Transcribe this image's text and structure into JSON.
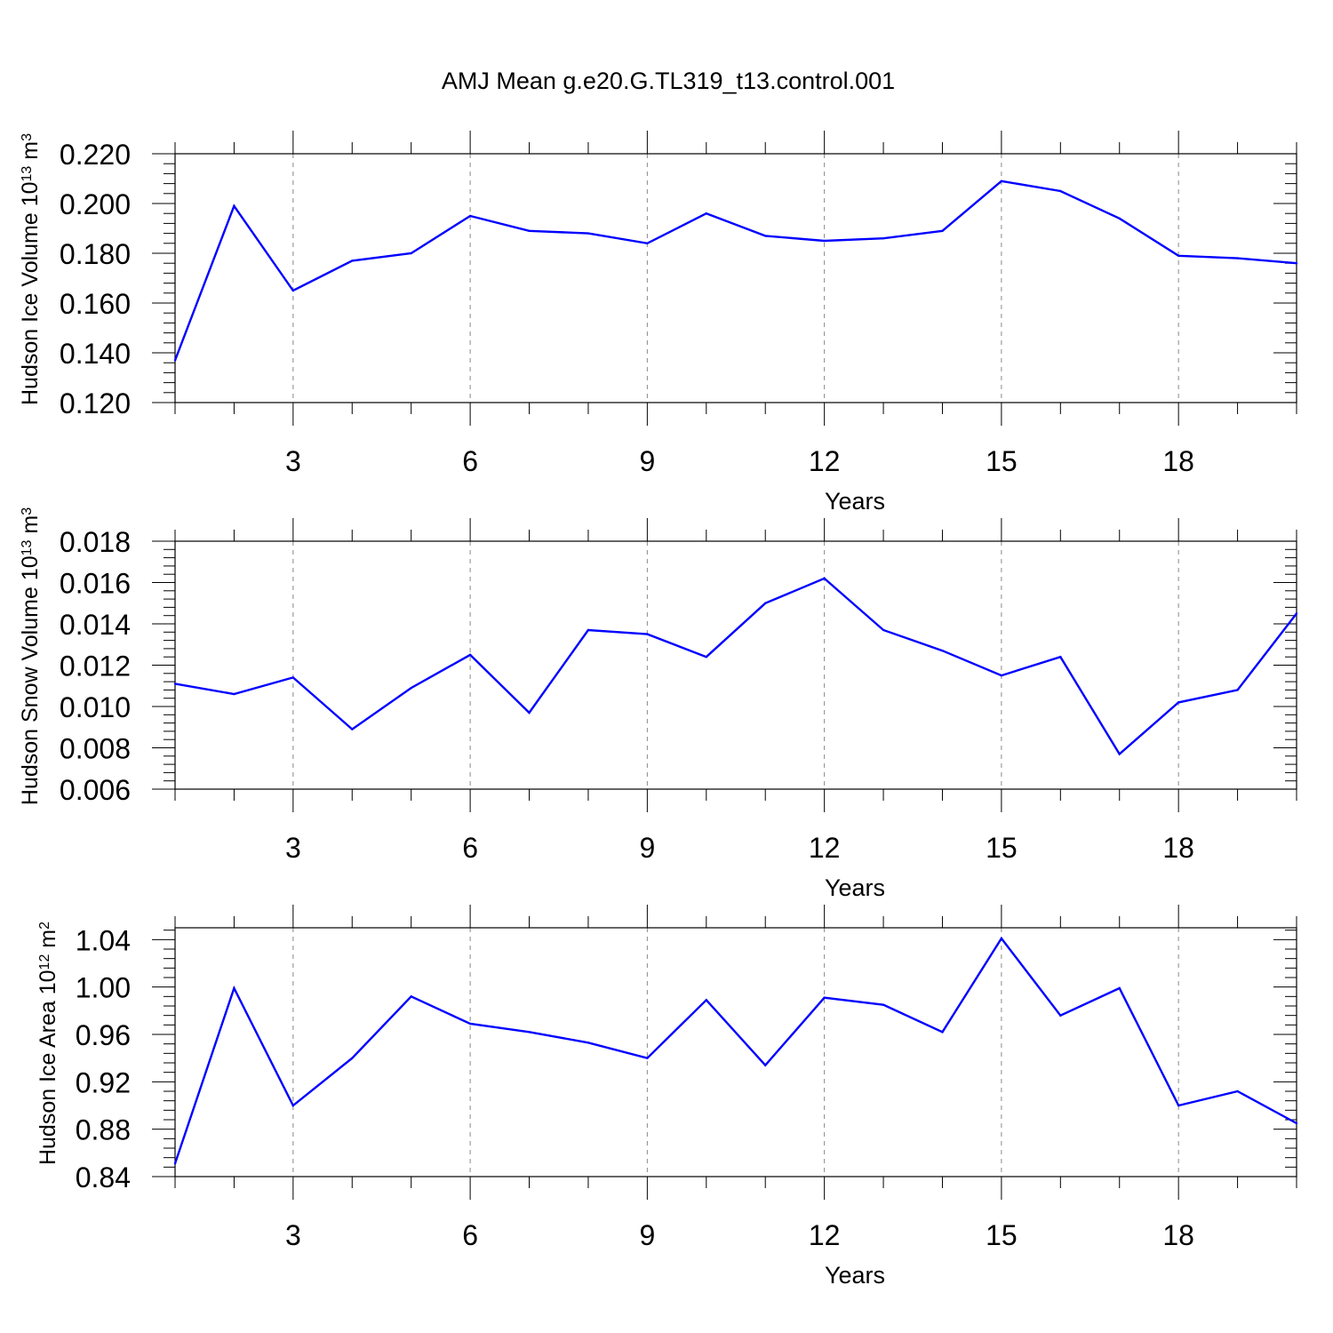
{
  "title": "AMJ Mean g.e20.G.TL319_t13.control.001",
  "colors": {
    "series": "#0000ff",
    "axis": "#000000",
    "grid": "#888888"
  },
  "chart_data": [
    {
      "type": "line",
      "id": "ice-volume",
      "ylabel_main": "Hudson Ice Volume 10",
      "ylabel_sup1": "13",
      "ylabel_unit": " m",
      "ylabel_sup2": "3",
      "xlabel": "Years",
      "xlim": [
        1,
        20
      ],
      "ylim": [
        0.12,
        0.22
      ],
      "xticks": [
        3,
        6,
        9,
        12,
        15,
        18
      ],
      "yticks": [
        0.12,
        0.14,
        0.16,
        0.18,
        0.2,
        0.22
      ],
      "ytick_labels": [
        "0.120",
        "0.140",
        "0.160",
        "0.180",
        "0.200",
        "0.220"
      ],
      "series": [
        {
          "name": "Hudson Ice Volume",
          "x": [
            1,
            2,
            3,
            4,
            5,
            6,
            7,
            8,
            9,
            10,
            11,
            12,
            13,
            14,
            15,
            16,
            17,
            18,
            19,
            20
          ],
          "values": [
            0.137,
            0.199,
            0.165,
            0.177,
            0.18,
            0.195,
            0.189,
            0.188,
            0.184,
            0.196,
            0.187,
            0.185,
            0.186,
            0.189,
            0.209,
            0.205,
            0.194,
            0.179,
            0.178,
            0.176
          ]
        }
      ]
    },
    {
      "type": "line",
      "id": "snow-volume",
      "ylabel_main": "Hudson Snow Volume 10",
      "ylabel_sup1": "13",
      "ylabel_unit": " m",
      "ylabel_sup2": "3",
      "xlabel": "Years",
      "xlim": [
        1,
        20
      ],
      "ylim": [
        0.006,
        0.018
      ],
      "xticks": [
        3,
        6,
        9,
        12,
        15,
        18
      ],
      "yticks": [
        0.006,
        0.008,
        0.01,
        0.012,
        0.014,
        0.016,
        0.018
      ],
      "ytick_labels": [
        "0.006",
        "0.008",
        "0.010",
        "0.012",
        "0.014",
        "0.016",
        "0.018"
      ],
      "series": [
        {
          "name": "Hudson Snow Volume",
          "x": [
            1,
            2,
            3,
            4,
            5,
            6,
            7,
            8,
            9,
            10,
            11,
            12,
            13,
            14,
            15,
            16,
            17,
            18,
            19,
            20
          ],
          "values": [
            0.0111,
            0.0106,
            0.0114,
            0.0089,
            0.0109,
            0.0125,
            0.0097,
            0.0137,
            0.0135,
            0.0124,
            0.015,
            0.0162,
            0.0137,
            0.0127,
            0.0115,
            0.0124,
            0.0077,
            0.0102,
            0.0108,
            0.0145
          ]
        }
      ]
    },
    {
      "type": "line",
      "id": "ice-area",
      "ylabel_main": "Hudson Ice Area 10",
      "ylabel_sup1": "12",
      "ylabel_unit": " m",
      "ylabel_sup2": "2",
      "xlabel": "Years",
      "xlim": [
        1,
        20
      ],
      "ylim": [
        0.84,
        1.05
      ],
      "xticks": [
        3,
        6,
        9,
        12,
        15,
        18
      ],
      "yticks": [
        0.84,
        0.88,
        0.92,
        0.96,
        1.0,
        1.04
      ],
      "ytick_labels": [
        "0.84",
        "0.88",
        "0.92",
        "0.96",
        "1.00",
        "1.04"
      ],
      "series": [
        {
          "name": "Hudson Ice Area",
          "x": [
            1,
            2,
            3,
            4,
            5,
            6,
            7,
            8,
            9,
            10,
            11,
            12,
            13,
            14,
            15,
            16,
            17,
            18,
            19,
            20
          ],
          "values": [
            0.851,
            0.999,
            0.9,
            0.94,
            0.992,
            0.969,
            0.962,
            0.953,
            0.94,
            0.989,
            0.934,
            0.991,
            0.985,
            0.962,
            1.041,
            0.976,
            0.999,
            0.9,
            0.912,
            0.885
          ]
        }
      ]
    }
  ]
}
